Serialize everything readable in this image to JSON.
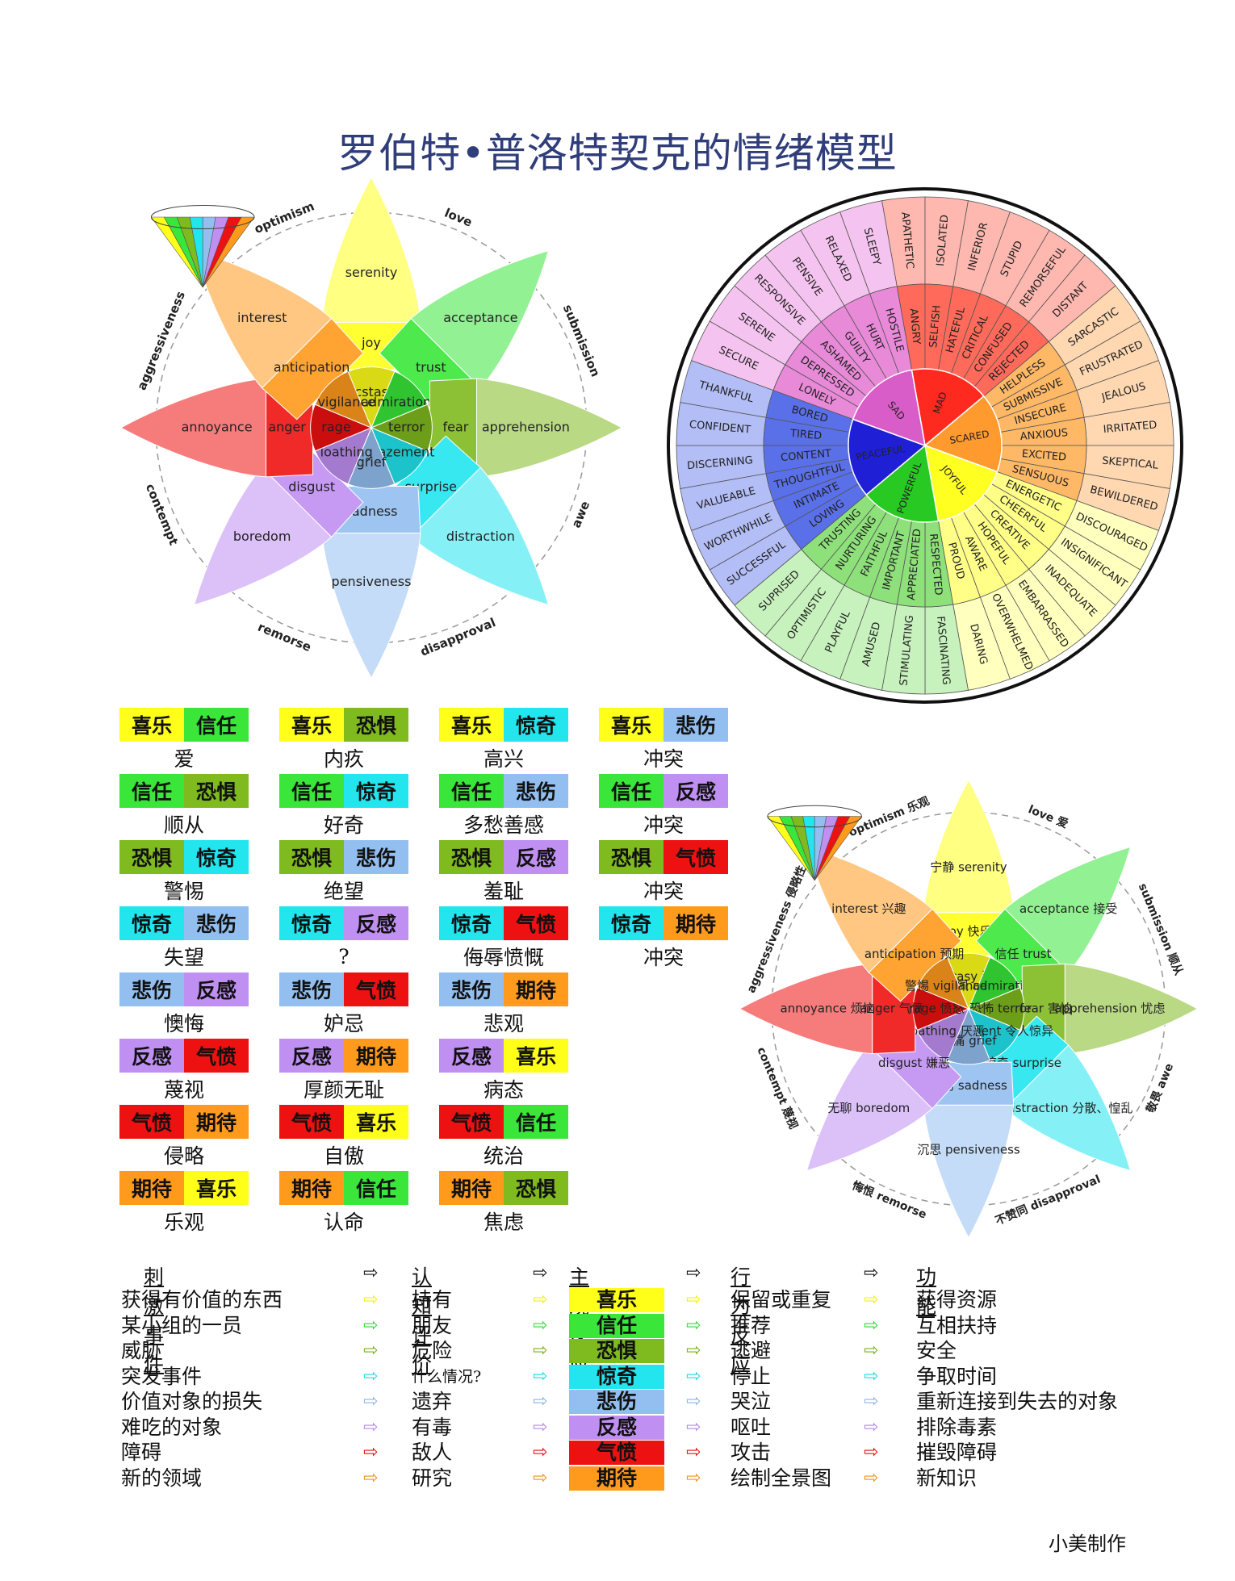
{
  "title": "罗伯特•普洛特契克的情绪模型",
  "colors": {
    "joy": "#ffff1a",
    "trust": "#39e639",
    "fear": "#7fba1f",
    "surprise": "#22e5ee",
    "sadness": "#93bff0",
    "disgust": "#c08ff2",
    "anger": "#ee1111",
    "anticipation": "#ff9a1c"
  },
  "feeling_wheel": {
    "core": [
      "MAD",
      "SCARED",
      "JOYFUL",
      "POWERFUL",
      "PEACEFUL",
      "SAD"
    ],
    "middle": [
      "HURT",
      "HOSTILE",
      "ANGRY",
      "SELFISH",
      "HATEFUL",
      "CRITICAL",
      "CONFUSED",
      "REJECTED",
      "HELPLESS",
      "SUBMISSIVE",
      "INSECURE",
      "ANXIOUS",
      "EXCITED",
      "SENSUOUS",
      "ENERGETIC",
      "CHEERFUL",
      "CREATIVE",
      "HOPEFUL",
      "AWARE",
      "PROUD",
      "RESPECTED",
      "APPRECIATED",
      "IMPORTANT",
      "FAITHFUL",
      "NURTURING",
      "TRUSTING",
      "LOVING",
      "INTIMATE",
      "THOUGHTFUL",
      "CONTENT",
      "TIRED",
      "BORED",
      "LONELY",
      "DEPRESSED",
      "ASHAMED",
      "GUILTY"
    ],
    "outer": [
      "JEALOUS",
      "IRRITATED",
      "SKEPTICAL",
      "BEWILDERED",
      "DISCOURAGED",
      "INSIGNIFICANT",
      "INADEQUATE",
      "EMBARRASSED",
      "OVERWHELMED",
      "DARING",
      "FASCINATING",
      "STIMULATING",
      "AMUSED",
      "PLAYFUL",
      "OPTIMISTIC",
      "SUPRISED",
      "SUCCESSFUL",
      "WORTHWHILE",
      "VALUEABLE",
      "DISCERNING",
      "CONFIDENT",
      "THANKFUL",
      "SECURE",
      "SERENE",
      "RESPONSIVE",
      "PENSIVE",
      "RELAXED",
      "SLEEPY",
      "APATHETIC",
      "ISOLATED",
      "INFERIOR",
      "STUPID",
      "REMORSEFUL",
      "DISTANT",
      "SARCASTIC",
      "FRUSTRATED"
    ]
  },
  "plutchik": {
    "petals": [
      {
        "outer": "serenity",
        "mid": "joy",
        "inner": "ecstasy",
        "color": "joy"
      },
      {
        "outer": "acceptance",
        "mid": "trust",
        "inner": "admiration",
        "color": "trust"
      },
      {
        "outer": "apprehension",
        "mid": "fear",
        "inner": "terror",
        "color": "fear"
      },
      {
        "outer": "distraction",
        "mid": "surprise",
        "inner": "amazement",
        "color": "surprise"
      },
      {
        "outer": "pensiveness",
        "mid": "sadness",
        "inner": "grief",
        "color": "sadness"
      },
      {
        "outer": "boredom",
        "mid": "disgust",
        "inner": "loathing",
        "color": "disgust"
      },
      {
        "outer": "annoyance",
        "mid": "anger",
        "inner": "rage",
        "color": "anger"
      },
      {
        "outer": "interest",
        "mid": "anticipation",
        "inner": "vigilance",
        "color": "anticipation"
      }
    ],
    "dyads": [
      "love",
      "submission",
      "awe",
      "disapproval",
      "remorse",
      "contempt",
      "aggressiveness",
      "optimism"
    ]
  },
  "plutchik_cn": {
    "petals": [
      {
        "outer": "宁静 serenity",
        "mid": "joy 快乐",
        "inner": "ecstasy 狂喜"
      },
      {
        "outer": "acceptance 接受",
        "mid": "信任 trust",
        "inner": "钦佩 admiration"
      },
      {
        "outer": "apprehension 忧虑",
        "mid": "fear 害怕",
        "inner": "恐怖 terror"
      },
      {
        "outer": "distraction 分散、惶乱",
        "mid": "惊奇 surprise",
        "inner": "amazement 令人惊异"
      },
      {
        "outer": "沉思 pensiveness",
        "mid": "哀伤 sadness",
        "inner": "悲痛 grief"
      },
      {
        "outer": "无聊 boredom",
        "mid": "disgust 嫌恶",
        "inner": "loathing 厌恶"
      },
      {
        "outer": "annoyance 烦恼",
        "mid": "anger 气愤",
        "inner": "rage 愤怒"
      },
      {
        "outer": "interest 兴趣",
        "mid": "anticipation 预期",
        "inner": "警惕 vigilance"
      }
    ],
    "dyads": [
      "love 爱",
      "submission 顺从",
      "敬畏 awe",
      "不赞同 disapproval",
      "悔恨 remorse",
      "contempt 蔑视",
      "aggressiveness 侵略性",
      "optimism 乐观"
    ]
  },
  "combinations": [
    {
      "a": "喜乐",
      "ca": "joy",
      "b": "信任",
      "cb": "trust",
      "result": "爱"
    },
    {
      "a": "喜乐",
      "ca": "joy",
      "b": "恐惧",
      "cb": "fear",
      "result": "内疚"
    },
    {
      "a": "喜乐",
      "ca": "joy",
      "b": "惊奇",
      "cb": "surprise",
      "result": "高兴"
    },
    {
      "a": "喜乐",
      "ca": "joy",
      "b": "悲伤",
      "cb": "sadness",
      "result": "冲突"
    },
    {
      "a": "信任",
      "ca": "trust",
      "b": "恐惧",
      "cb": "fear",
      "result": "顺从"
    },
    {
      "a": "信任",
      "ca": "trust",
      "b": "惊奇",
      "cb": "surprise",
      "result": "好奇"
    },
    {
      "a": "信任",
      "ca": "trust",
      "b": "悲伤",
      "cb": "sadness",
      "result": "多愁善感"
    },
    {
      "a": "信任",
      "ca": "trust",
      "b": "反感",
      "cb": "disgust",
      "result": "冲突"
    },
    {
      "a": "恐惧",
      "ca": "fear",
      "b": "惊奇",
      "cb": "surprise",
      "result": "警惕"
    },
    {
      "a": "恐惧",
      "ca": "fear",
      "b": "悲伤",
      "cb": "sadness",
      "result": "绝望"
    },
    {
      "a": "恐惧",
      "ca": "fear",
      "b": "反感",
      "cb": "disgust",
      "result": "羞耻"
    },
    {
      "a": "恐惧",
      "ca": "fear",
      "b": "气愤",
      "cb": "anger",
      "result": "冲突"
    },
    {
      "a": "惊奇",
      "ca": "surprise",
      "b": "悲伤",
      "cb": "sadness",
      "result": "失望"
    },
    {
      "a": "惊奇",
      "ca": "surprise",
      "b": "反感",
      "cb": "disgust",
      "result": "?"
    },
    {
      "a": "惊奇",
      "ca": "surprise",
      "b": "气愤",
      "cb": "anger",
      "result": "侮辱愤慨"
    },
    {
      "a": "惊奇",
      "ca": "surprise",
      "b": "期待",
      "cb": "anticipation",
      "result": "冲突"
    },
    {
      "a": "悲伤",
      "ca": "sadness",
      "b": "反感",
      "cb": "disgust",
      "result": "懊悔"
    },
    {
      "a": "悲伤",
      "ca": "sadness",
      "b": "气愤",
      "cb": "anger",
      "result": "妒忌"
    },
    {
      "a": "悲伤",
      "ca": "sadness",
      "b": "期待",
      "cb": "anticipation",
      "result": "悲观"
    },
    null,
    {
      "a": "反感",
      "ca": "disgust",
      "b": "气愤",
      "cb": "anger",
      "result": "蔑视"
    },
    {
      "a": "反感",
      "ca": "disgust",
      "b": "期待",
      "cb": "anticipation",
      "result": "厚颜无耻"
    },
    {
      "a": "反感",
      "ca": "disgust",
      "b": "喜乐",
      "cb": "joy",
      "result": "病态"
    },
    null,
    {
      "a": "气愤",
      "ca": "anger",
      "b": "期待",
      "cb": "anticipation",
      "result": "侵略"
    },
    {
      "a": "气愤",
      "ca": "anger",
      "b": "喜乐",
      "cb": "joy",
      "result": "自傲"
    },
    {
      "a": "气愤",
      "ca": "anger",
      "b": "信任",
      "cb": "trust",
      "result": "统治"
    },
    null,
    {
      "a": "期待",
      "ca": "anticipation",
      "b": "喜乐",
      "cb": "joy",
      "result": "乐观"
    },
    {
      "a": "期待",
      "ca": "anticipation",
      "b": "信任",
      "cb": "trust",
      "result": "认命"
    },
    {
      "a": "期待",
      "ca": "anticipation",
      "b": "恐惧",
      "cb": "fear",
      "result": "焦虑"
    }
  ],
  "flow": {
    "headers": [
      "刺激事件",
      "认知评价",
      "主观反应",
      "行为反应",
      "功能"
    ],
    "arrow_glyph": "⇨",
    "rows": [
      {
        "stimulus": "获得有价值的东西",
        "cognition": "持有",
        "feeling": "喜乐",
        "behavior": "保留或重复",
        "function": "获得资源",
        "color": "joy"
      },
      {
        "stimulus": "某小组的一员",
        "cognition": "朋友",
        "feeling": "信任",
        "behavior": "推荐",
        "function": "互相扶持",
        "color": "trust"
      },
      {
        "stimulus": "威胁",
        "cognition": "危险",
        "feeling": "恐惧",
        "behavior": "逃避",
        "function": "安全",
        "color": "fear"
      },
      {
        "stimulus": "突发事件",
        "cognition": "什么情况?",
        "feeling": "惊奇",
        "behavior": "停止",
        "function": "争取时间",
        "color": "surprise"
      },
      {
        "stimulus": "价值对象的损失",
        "cognition": "遗弃",
        "feeling": "悲伤",
        "behavior": "哭泣",
        "function": "重新连接到失去的对象",
        "color": "sadness"
      },
      {
        "stimulus": "难吃的对象",
        "cognition": "有毒",
        "feeling": "反感",
        "behavior": "呕吐",
        "function": "排除毒素",
        "color": "disgust"
      },
      {
        "stimulus": "障碍",
        "cognition": "敌人",
        "feeling": "气愤",
        "behavior": "攻击",
        "function": "摧毁障碍",
        "color": "anger"
      },
      {
        "stimulus": "新的领域",
        "cognition": "研究",
        "feeling": "期待",
        "behavior": "绘制全景图",
        "function": "新知识",
        "color": "anticipation"
      }
    ]
  },
  "credit": "小美制作"
}
